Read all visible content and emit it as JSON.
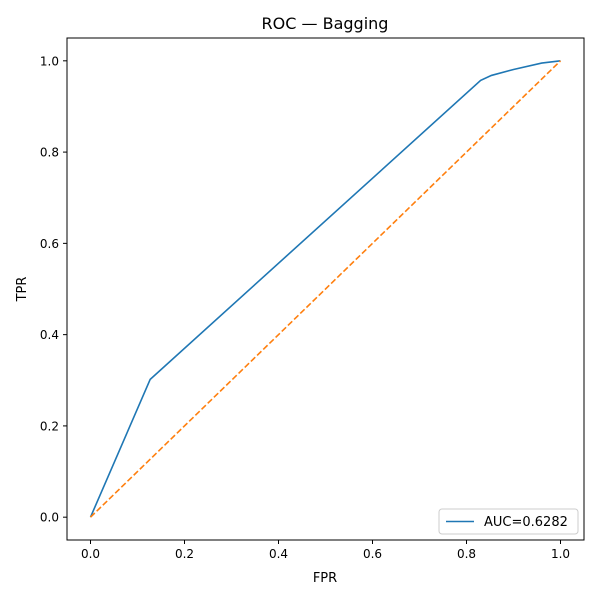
{
  "chart_data": {
    "type": "line",
    "title": "ROC — Bagging",
    "xlabel": "FPR",
    "ylabel": "TPR",
    "xlim": [
      -0.05,
      1.05
    ],
    "ylim": [
      -0.05,
      1.05
    ],
    "x_ticks": [
      "0.0",
      "0.2",
      "0.4",
      "0.6",
      "0.8",
      "1.0"
    ],
    "y_ticks": [
      "0.0",
      "0.2",
      "0.4",
      "0.6",
      "0.8",
      "1.0"
    ],
    "grid": false,
    "legend_position": "lower-right",
    "series": [
      {
        "name": "AUC=0.6282",
        "color": "#1f77b4",
        "style": "solid",
        "x": [
          0.0,
          0.127,
          0.83,
          0.853,
          0.9,
          0.96,
          1.0
        ],
        "y": [
          0.0,
          0.302,
          0.957,
          0.968,
          0.981,
          0.995,
          1.0
        ]
      },
      {
        "color": "#ff7f0e",
        "style": "dashed",
        "x": [
          0.0,
          1.0
        ],
        "y": [
          0.0,
          1.0
        ]
      }
    ]
  }
}
